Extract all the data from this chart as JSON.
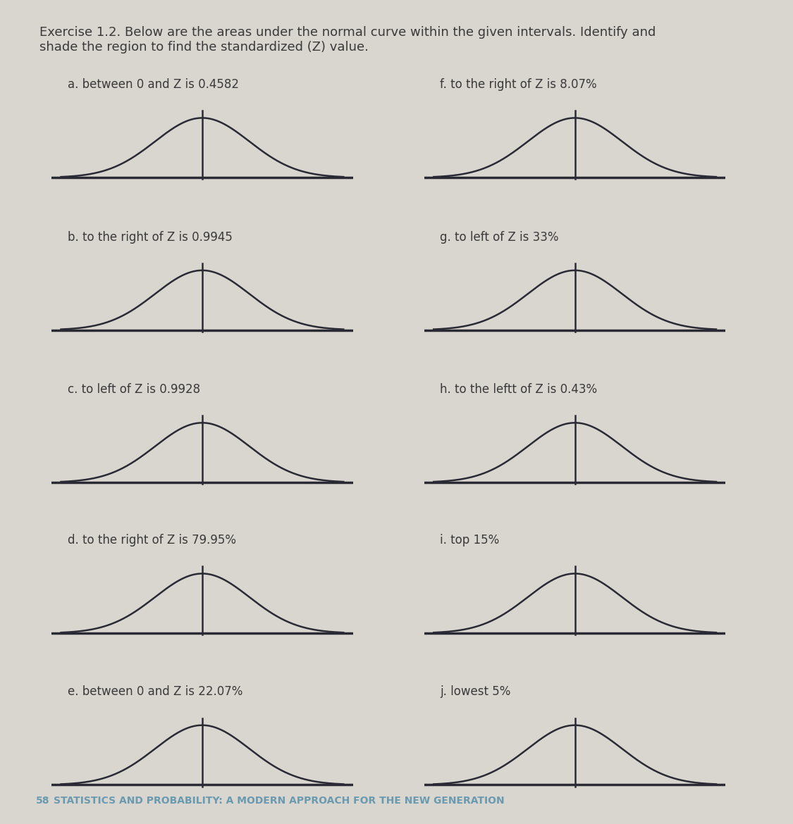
{
  "header_line1": "Exercise 1.2. Below are the areas under the normal curve within the given intervals. Identify and",
  "header_line2": "shade the region to find the standardized (Z) value.",
  "footer_num": "58",
  "footer_text": "  STATISTICS AND PROBABILITY: A MODERN APPROACH FOR THE NEW GENERATION",
  "labels": [
    "a. between 0 and Z is 0.4582",
    "b. to the right of Z is 0.9945",
    "c. to left of Z is 0.9928",
    "d. to the right of Z is 79.95%",
    "e. between 0 and Z is 22.07%",
    "f. to the right of Z is 8.07%",
    "g. to left of Z is 33%",
    "h. to the leftt of Z is 0.43%",
    "i. top 15%",
    "j. lowest 5%"
  ],
  "background_color": "#d9d5cf",
  "curve_color": "#2a2a35",
  "text_color": "#3a3a3a",
  "footer_color": "#6a9ab0",
  "header_fontsize": 13.0,
  "label_fontsize": 12.0,
  "footer_fontsize": 10.0
}
